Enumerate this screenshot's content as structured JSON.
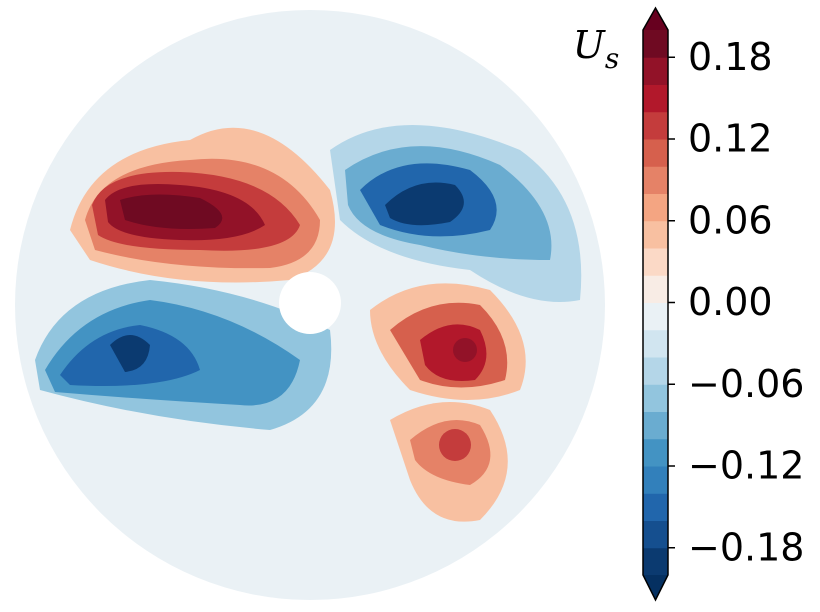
{
  "chart_data": {
    "type": "contour",
    "colorbar_label": {
      "text": "U",
      "subscript": "s"
    },
    "clim": [
      -0.2,
      0.2
    ],
    "colors": [
      "#0b3a70",
      "#154f8f",
      "#2166ac",
      "#3280bb",
      "#4393c3",
      "#6aacd0",
      "#92c5de",
      "#b4d6e8",
      "#d1e5f0",
      "#eaf1f5",
      "#f8ece5",
      "#fbd9c6",
      "#f8c0a1",
      "#f4a582",
      "#e58267",
      "#d6604d",
      "#c43c3c",
      "#b2182b",
      "#921228",
      "#6f0a22"
    ],
    "under_color": "#053061",
    "over_color": "#67001f",
    "yticks": [
      {
        "value": -0.18,
        "label": "−0.18"
      },
      {
        "value": -0.12,
        "label": "−0.12"
      },
      {
        "value": -0.06,
        "label": "−0.06"
      },
      {
        "value": 0,
        "label": "0.00"
      },
      {
        "value": 0.06,
        "label": "0.06"
      },
      {
        "value": 0.12,
        "label": "0.12"
      },
      {
        "value": 0.18,
        "label": "0.18"
      }
    ]
  }
}
